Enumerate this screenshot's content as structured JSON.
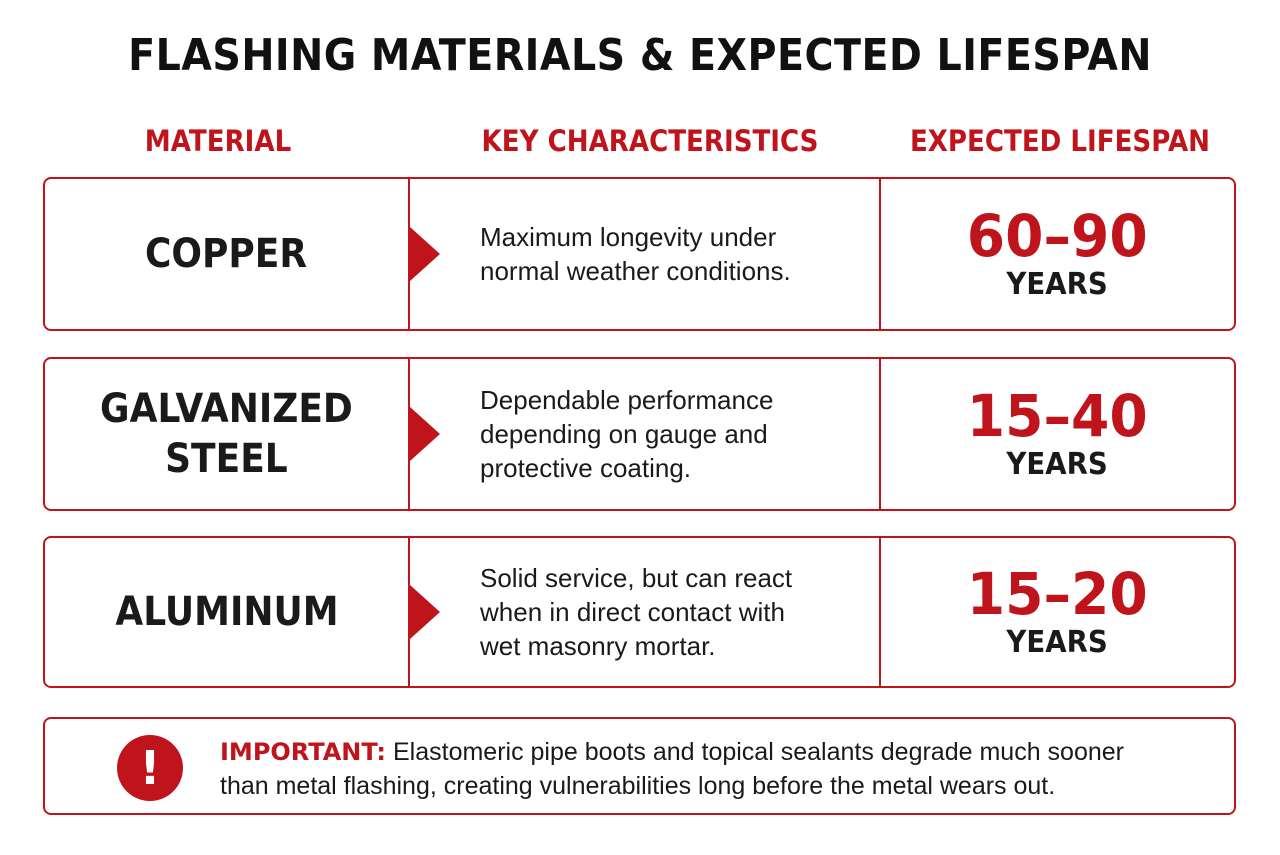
{
  "title": "FLASHING MATERIALS & EXPECTED LIFESPAN",
  "headers": {
    "material": "MATERIAL",
    "characteristics": "KEY CHARACTERISTICS",
    "lifespan": "EXPECTED LIFESPAN"
  },
  "rows": [
    {
      "material": [
        "COPPER"
      ],
      "description": [
        "Maximum longevity under",
        "normal weather conditions."
      ],
      "lifespan": "60–90",
      "unit": "YEARS"
    },
    {
      "material": [
        "GALVANIZED",
        "STEEL"
      ],
      "description": [
        "Dependable performance",
        "depending on gauge and",
        "protective coating."
      ],
      "lifespan": "15–40",
      "unit": "YEARS"
    },
    {
      "material": [
        "ALUMINUM"
      ],
      "description": [
        "Solid service, but can react",
        "when in direct contact with",
        "wet masonry mortar."
      ],
      "lifespan": "15–20",
      "unit": "YEARS"
    }
  ],
  "note": {
    "icon": "exclamation-icon",
    "label": "IMPORTANT:",
    "text_line1": "Elastomeric pipe boots and topical sealants degrade much sooner",
    "text_line2": "than metal flashing, creating vulnerabilities long before the metal wears out."
  },
  "colors": {
    "accent": "#c0141c",
    "text": "#1a1a1a"
  }
}
